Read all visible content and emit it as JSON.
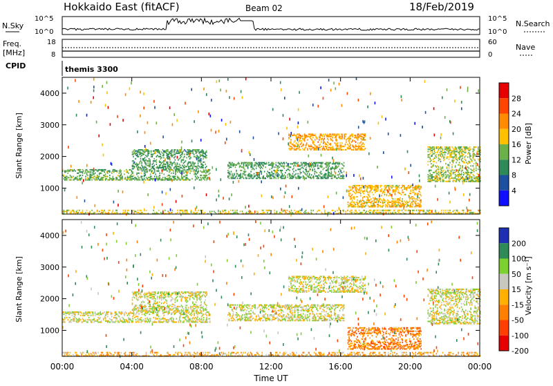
{
  "header": {
    "title": "Hokkaido East (fitACF)",
    "beam": "Beam 02",
    "date": "18/Feb/2019"
  },
  "panels": {
    "nsky": {
      "label": "N.Sky",
      "left_ticks": [
        "10^5",
        "10^0"
      ],
      "right_ticks": [
        "10^5",
        "10^0"
      ],
      "right_label": "N.Search"
    },
    "freq": {
      "label_top": "Freq.",
      "label_bottom": "[MHz]",
      "left_ticks": [
        "18",
        "8"
      ],
      "right_ticks": [
        "60",
        "0"
      ],
      "right_label": "Nave"
    },
    "cpid": {
      "label": "CPID",
      "text": "themis 3300"
    }
  },
  "plot_power": {
    "ylabel": "Slant Range [km]",
    "cbar_label": "Power [dB]",
    "cbar_ticks": [
      "28",
      "24",
      "20",
      "16",
      "12",
      "8",
      "4"
    ],
    "cbar_colors": [
      "#e60000",
      "#ff4500",
      "#ff8c00",
      "#ffc000",
      "#6bb048",
      "#2e8b57",
      "#1e50a0",
      "#1010ff"
    ]
  },
  "plot_velocity": {
    "ylabel": "Slant Range [km]",
    "cbar_label": "Velocity [m s⁻¹]",
    "cbar_ticks": [
      "200",
      "100",
      "50",
      "15",
      "-15",
      "-50",
      "-100",
      "-200"
    ],
    "cbar_colors": [
      "#1e2fb4",
      "#2e8b57",
      "#7cd030",
      "#c8c8c0",
      "#ffb000",
      "#ff8000",
      "#ff4000",
      "#e60000"
    ]
  },
  "xaxis": {
    "label": "Time UT",
    "ticks": [
      "00:00",
      "04:00",
      "08:00",
      "12:00",
      "16:00",
      "20:00",
      "00:00"
    ]
  },
  "chart_data": [
    {
      "type": "heatmap",
      "title": "Power",
      "x_range_hours": [
        0,
        24
      ],
      "y_range_km": [
        180,
        4500
      ],
      "yticks": [
        1000,
        2000,
        3000,
        4000
      ],
      "colorbar": "Power [dB]",
      "clim": [
        0,
        30
      ],
      "regions": [
        {
          "t0": 0.0,
          "t1": 8.5,
          "r0": 1250,
          "r1": 1600,
          "value": 12
        },
        {
          "t0": 4.0,
          "t1": 8.3,
          "r0": 1600,
          "r1": 2200,
          "value": 10
        },
        {
          "t0": 13.0,
          "t1": 17.4,
          "r0": 2200,
          "r1": 2700,
          "value": 20
        },
        {
          "t0": 9.5,
          "t1": 16.2,
          "r0": 1300,
          "r1": 1800,
          "value": 10
        },
        {
          "t0": 16.4,
          "t1": 20.6,
          "r0": 400,
          "r1": 1100,
          "value": 18
        },
        {
          "t0": 21.0,
          "t1": 24.0,
          "r0": 1200,
          "r1": 2300,
          "value": 14
        },
        {
          "t0": 0.0,
          "t1": 24.0,
          "r0": 180,
          "r1": 320,
          "value": 16
        }
      ]
    },
    {
      "type": "heatmap",
      "title": "Velocity",
      "x_range_hours": [
        0,
        24
      ],
      "y_range_km": [
        180,
        4500
      ],
      "yticks": [
        1000,
        2000,
        3000,
        4000
      ],
      "colorbar": "Velocity [m s-1]",
      "clim": [
        -200,
        200
      ],
      "regions": [
        {
          "t0": 0.0,
          "t1": 8.5,
          "r0": 1250,
          "r1": 1600,
          "value": 0
        },
        {
          "t0": 4.0,
          "t1": 8.3,
          "r0": 1600,
          "r1": 2200,
          "value": 0
        },
        {
          "t0": 13.0,
          "t1": 17.4,
          "r0": 2200,
          "r1": 2700,
          "value": 0
        },
        {
          "t0": 9.5,
          "t1": 16.2,
          "r0": 1300,
          "r1": 1800,
          "value": 0
        },
        {
          "t0": 16.4,
          "t1": 20.6,
          "r0": 400,
          "r1": 1100,
          "value": -80
        },
        {
          "t0": 21.0,
          "t1": 24.0,
          "r0": 1200,
          "r1": 2300,
          "value": 0
        },
        {
          "t0": 0.0,
          "t1": 24.0,
          "r0": 180,
          "r1": 320,
          "value": -40
        }
      ]
    }
  ]
}
